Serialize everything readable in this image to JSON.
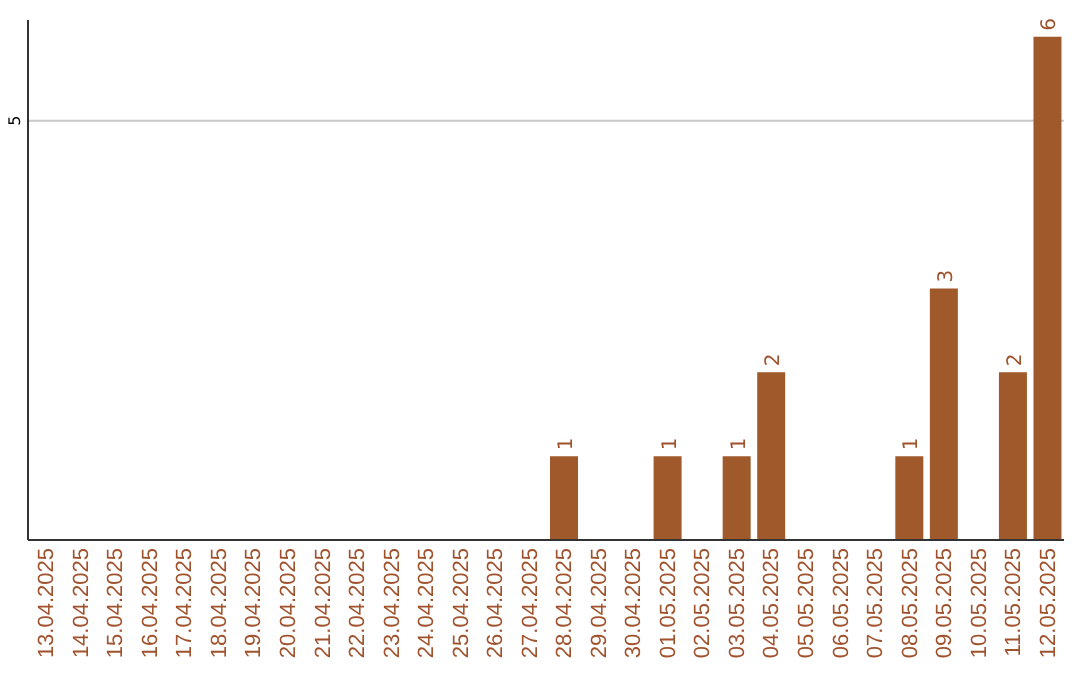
{
  "chart_data": {
    "type": "bar",
    "categories": [
      "13.04.2025",
      "14.04.2025",
      "15.04.2025",
      "16.04.2025",
      "17.04.2025",
      "18.04.2025",
      "19.04.2025",
      "20.04.2025",
      "21.04.2025",
      "22.04.2025",
      "23.04.2025",
      "24.04.2025",
      "25.04.2025",
      "26.04.2025",
      "27.04.2025",
      "28.04.2025",
      "29.04.2025",
      "30.04.2025",
      "01.05.2025",
      "02.05.2025",
      "03.05.2025",
      "04.05.2025",
      "05.05.2025",
      "06.05.2025",
      "07.05.2025",
      "08.05.2025",
      "09.05.2025",
      "10.05.2025",
      "11.05.2025",
      "12.05.2025"
    ],
    "values": [
      null,
      null,
      null,
      null,
      null,
      null,
      null,
      null,
      null,
      null,
      null,
      null,
      null,
      null,
      null,
      1,
      null,
      null,
      1,
      null,
      1,
      2,
      null,
      null,
      null,
      1,
      3,
      null,
      2,
      6
    ],
    "data_labels": true,
    "color": "#a0592a",
    "ylim": [
      0,
      6.2
    ],
    "yticks": [
      5
    ],
    "grid": "y",
    "legend": false
  }
}
